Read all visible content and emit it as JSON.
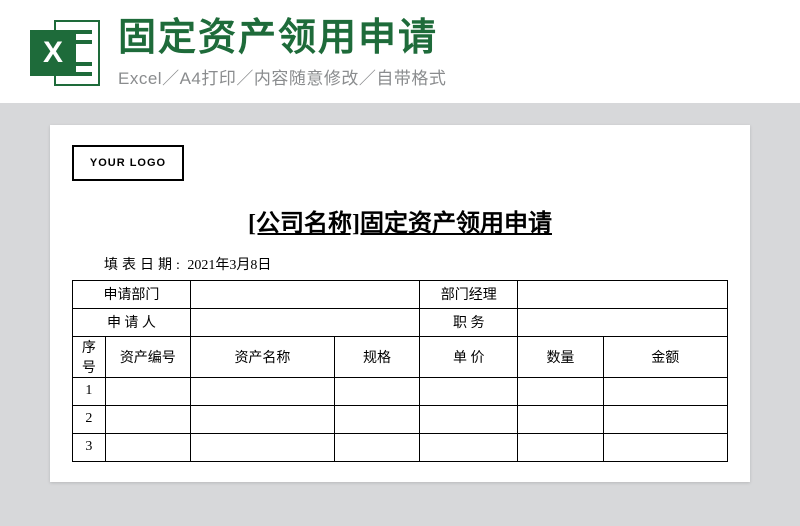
{
  "header": {
    "icon_letter": "X",
    "main_title": "固定资产领用申请",
    "sub_title": "Excel／A4打印／内容随意修改／自带格式"
  },
  "colors": {
    "brand_green": "#1e6b3a",
    "sub_gray": "#8a8c8e",
    "page_bg": "#d7d8da",
    "paper_bg": "#ffffff",
    "border": "#000000"
  },
  "document": {
    "logo_text": "YOUR LOGO",
    "form_title": "[公司名称]固定资产领用申请",
    "fill_date_label": "填表日期:",
    "fill_date_value": "2021年3月8日",
    "top_rows": [
      {
        "left_label": "申请部门",
        "left_value": "",
        "right_label": "部门经理",
        "right_value": ""
      },
      {
        "left_label": "申 请 人",
        "left_value": "",
        "right_label": "职    务",
        "right_value": ""
      }
    ],
    "columns": [
      "序号",
      "资产编号",
      "资产名称",
      "规格",
      "单  价",
      "数量",
      "金额"
    ],
    "rows": [
      {
        "seq": "1",
        "code": "",
        "name": "",
        "spec": "",
        "price": "",
        "qty": "",
        "amount": ""
      },
      {
        "seq": "2",
        "code": "",
        "name": "",
        "spec": "",
        "price": "",
        "qty": "",
        "amount": ""
      },
      {
        "seq": "3",
        "code": "",
        "name": "",
        "spec": "",
        "price": "",
        "qty": "",
        "amount": ""
      }
    ]
  }
}
